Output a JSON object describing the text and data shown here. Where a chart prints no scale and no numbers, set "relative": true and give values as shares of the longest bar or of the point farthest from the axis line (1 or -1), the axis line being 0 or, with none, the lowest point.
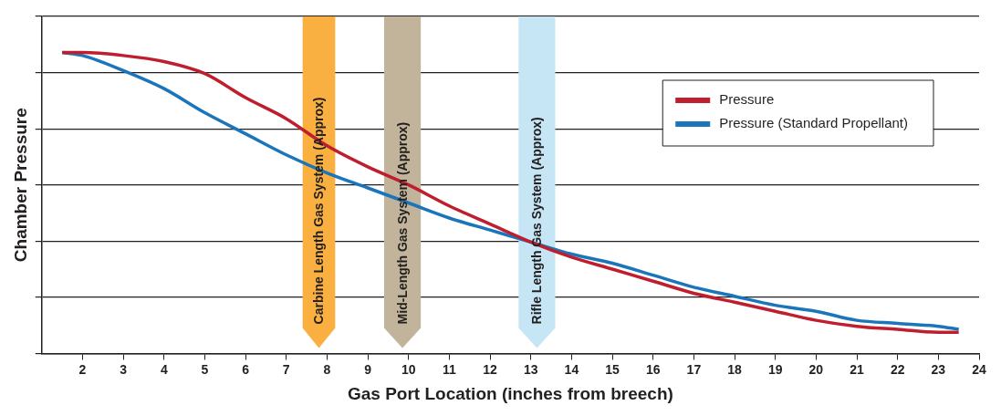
{
  "chart_data": {
    "type": "line",
    "xlabel": "Gas Port Location (inches from breech)",
    "ylabel": "Chamber Pressure",
    "relative": true,
    "xlim": [
      1,
      24
    ],
    "xticks": [
      2,
      3,
      4,
      5,
      6,
      7,
      8,
      9,
      10,
      11,
      12,
      13,
      14,
      15,
      16,
      17,
      18,
      19,
      20,
      21,
      22,
      23,
      24
    ],
    "grid": "y",
    "legend": "top right",
    "marker": "none",
    "line_style": "solid",
    "x": [
      1.5,
      2,
      3,
      4,
      5,
      6,
      7,
      8,
      9,
      10,
      11,
      12,
      13,
      14,
      15,
      16,
      17,
      18,
      19,
      20,
      21,
      22,
      23,
      23.5
    ],
    "series": [
      {
        "name": "Pressure",
        "color": "#be1e2d",
        "values": [
          1.0,
          1.0,
          0.99,
          0.97,
          0.93,
          0.85,
          0.78,
          0.69,
          0.62,
          0.56,
          0.49,
          0.43,
          0.37,
          0.32,
          0.28,
          0.24,
          0.2,
          0.17,
          0.14,
          0.11,
          0.09,
          0.08,
          0.07,
          0.07
        ]
      },
      {
        "name": "Pressure (Standard Propellant)",
        "color": "#1b75bb",
        "values": [
          1.0,
          0.99,
          0.94,
          0.88,
          0.8,
          0.73,
          0.66,
          0.6,
          0.55,
          0.5,
          0.45,
          0.41,
          0.37,
          0.33,
          0.3,
          0.26,
          0.22,
          0.19,
          0.16,
          0.14,
          0.11,
          0.1,
          0.09,
          0.08
        ]
      }
    ],
    "bands": [
      {
        "axis": "x",
        "from": 7.4,
        "to": 8.2,
        "label": "Carbine Length Gas System (Approx)",
        "color": "#f9b040"
      },
      {
        "axis": "x",
        "from": 9.4,
        "to": 10.3,
        "label": "Mid-Length Gas System (Approx)",
        "color": "#c2b49a"
      },
      {
        "axis": "x",
        "from": 12.7,
        "to": 13.6,
        "label": "Rifle Length Gas System (Approx)",
        "color": "#c6e6f5"
      }
    ]
  }
}
